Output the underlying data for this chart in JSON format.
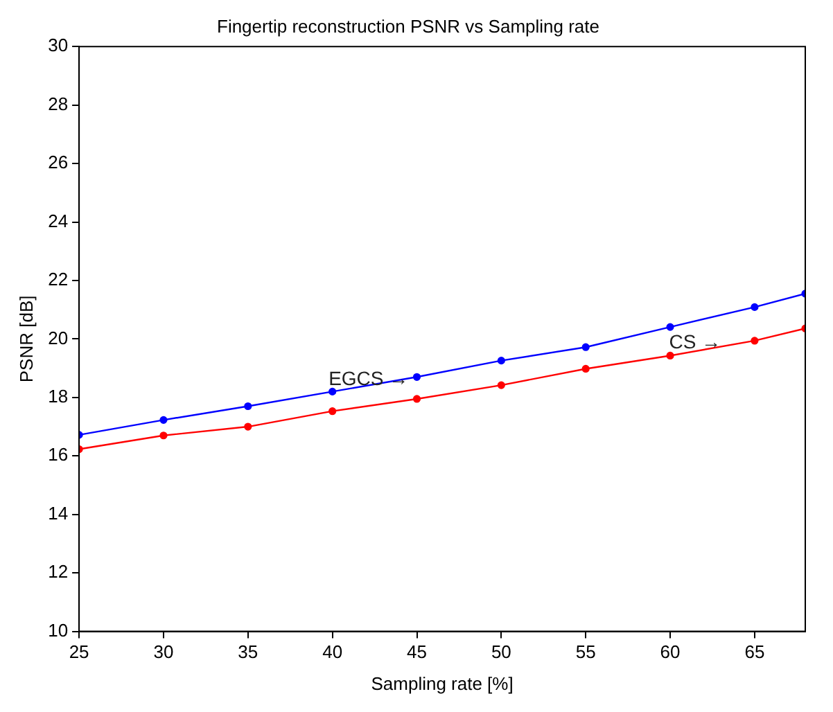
{
  "chart_data": {
    "type": "line",
    "title": "Fingertip reconstruction PSNR vs Sampling rate",
    "xlabel": "Sampling rate [%]",
    "ylabel": "PSNR [dB]",
    "x": [
      25,
      30,
      35,
      40,
      45,
      50,
      55,
      60,
      65,
      68
    ],
    "series": [
      {
        "color": "#0000ff",
        "values": [
          16.72,
          17.23,
          17.7,
          18.2,
          18.7,
          19.26,
          19.72,
          20.41,
          21.09,
          21.55
        ]
      },
      {
        "color": "#ff0000",
        "values": [
          16.23,
          16.7,
          17.0,
          17.53,
          17.95,
          18.42,
          18.98,
          19.43,
          19.94,
          20.36
        ]
      }
    ],
    "xlim": [
      25,
      68
    ],
    "xticks": [
      25,
      30,
      35,
      40,
      45,
      50,
      55,
      60,
      65
    ],
    "ylim": [
      10,
      30
    ],
    "yticks": [
      10,
      12,
      14,
      16,
      18,
      20,
      22,
      24,
      26,
      28,
      30
    ],
    "annotations": [
      {
        "text": "EGCS →",
        "x": 44.5,
        "y": 18.6
      },
      {
        "text": "CS →",
        "x": 63,
        "y": 19.85
      }
    ],
    "marker": "circle",
    "line_style": "solid",
    "grid": false,
    "legend": false
  }
}
